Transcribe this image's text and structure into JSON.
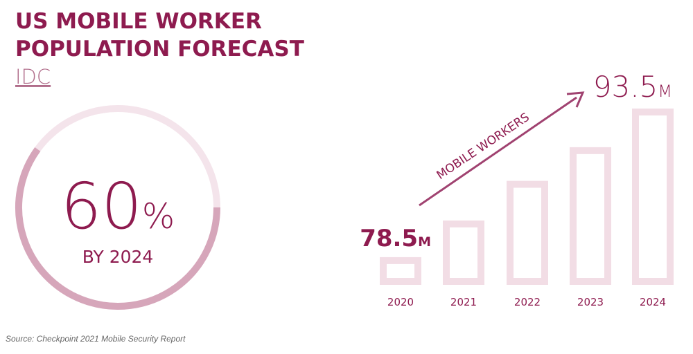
{
  "title_lines": [
    "US MOBILE WORKER",
    "POPULATION FORECAST"
  ],
  "subtitle": "IDC",
  "source": "Source: Checkpoint 2021 Mobile Security Report",
  "chart_data": [
    {
      "type": "donut",
      "values": [
        60
      ],
      "value_labels": [
        "60%"
      ],
      "subtitle": "BY 2024",
      "color": "#d6a6ba",
      "track_color": "#f4e4eb"
    },
    {
      "type": "bar",
      "categories": [
        "2020",
        "2021",
        "2022",
        "2023",
        "2024"
      ],
      "values": [
        78.5,
        82.2,
        86.2,
        89.6,
        93.5
      ],
      "value_labels": [
        "78.5M",
        null,
        null,
        null,
        "93.5M"
      ],
      "annotation": "MOBILE WORKERS",
      "color": "#f2dde5",
      "ylim": [
        75.7,
        93.5
      ]
    }
  ]
}
